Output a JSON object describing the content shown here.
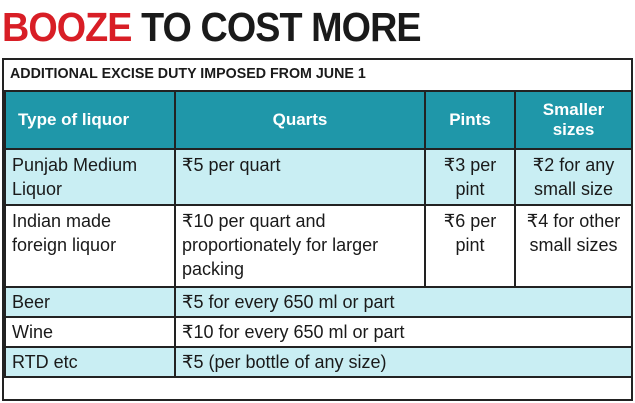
{
  "headline": {
    "part1": "BOOZE",
    "part2": "TO COST MORE"
  },
  "subtitle": "ADDITIONAL EXCISE DUTY IMPOSED FROM JUNE 1",
  "colors": {
    "headline_red": "#d81e26",
    "header_teal": "#1f97a9",
    "row_shade": "#c9eef3"
  },
  "table": {
    "headers": {
      "type": "Type of liquor",
      "quarts": "Quarts",
      "pints": "Pints",
      "smaller": "Smaller sizes"
    },
    "rows": [
      {
        "type": "Punjab Medium Liquor",
        "quarts": "₹5 per quart",
        "pints": "₹3 per pint",
        "smaller": "₹2 for any small size"
      },
      {
        "type": "Indian made foreign liquor",
        "quarts": "₹10 per quart and proportionately for larger packing",
        "pints": "₹6 per pint",
        "smaller": "₹4 for other small sizes"
      },
      {
        "type": "Beer",
        "all_sizes": "₹5 for every 650 ml or part"
      },
      {
        "type": "Wine",
        "all_sizes": "₹10 for every 650 ml or part"
      },
      {
        "type": "RTD etc",
        "all_sizes": "₹5 (per bottle of any size)"
      }
    ]
  }
}
